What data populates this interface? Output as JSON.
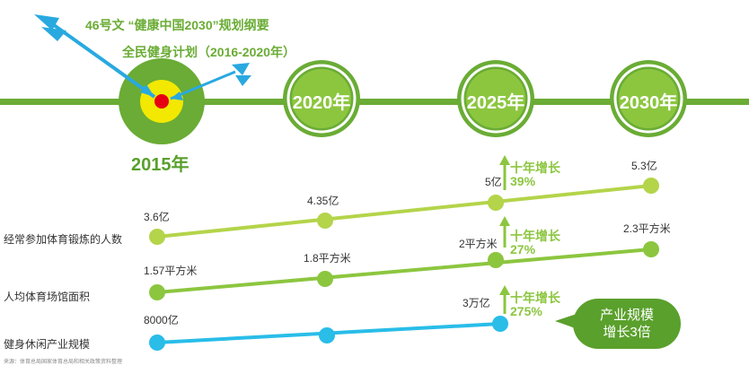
{
  "policies": {
    "line1": "46号文  “健康中国2030”规划纲要",
    "line2": "全民健身计划（2016-2020年）"
  },
  "timeline": {
    "start_year": "2015年",
    "milestones": [
      "2020年",
      "2025年",
      "2030年"
    ]
  },
  "rows": [
    {
      "label": "经常参加体育锻炼的人数",
      "values": [
        "3.6亿",
        "4.35亿",
        "5亿",
        "5.3亿"
      ],
      "growth": {
        "title": "十年增长",
        "value": "39%"
      },
      "color": "#b4d44a"
    },
    {
      "label": "人均体育场馆面积",
      "values": [
        "1.57平方米",
        "1.8平方米",
        "2平方米",
        "2.3平方米"
      ],
      "growth": {
        "title": "十年增长",
        "value": "27%"
      },
      "color": "#8cc63f"
    },
    {
      "label": "健身休闲产业规模",
      "values": [
        "8000亿",
        "",
        "3万亿",
        ""
      ],
      "growth": {
        "title": "十年增长",
        "value": "275%"
      },
      "color": "#29bde8"
    }
  ],
  "callout": {
    "line1": "产业规模",
    "line2": "增长3倍"
  },
  "footnote": "来源：体育总局国家体育总局和相关政策资料整理",
  "colors": {
    "timeline": "#6aac35",
    "circle_outer": "#6aac35",
    "circle_inner": "#8cc63f",
    "target_yellow": "#f2e800",
    "target_red": "#e60012",
    "arrow": "#29a9e0",
    "bubble": "#5aa02c"
  }
}
